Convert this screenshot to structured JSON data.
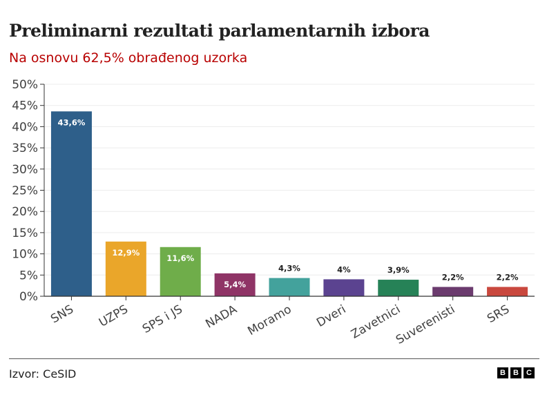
{
  "header": {
    "title": "Preliminarni rezultati parlamentarnih izbora",
    "subtitle": "Na osnovu 62,5% obrađenog uzorka"
  },
  "footer": {
    "source": "Izvor: CeSID",
    "logo": [
      "B",
      "B",
      "C"
    ]
  },
  "chart_data": {
    "type": "bar",
    "title": "Preliminarni rezultati parlamentarnih izbora",
    "subtitle": "Na osnovu 62,5% obrađenog uzorka",
    "categories": [
      "SNS",
      "UZPS",
      "SPS i JS",
      "NADA",
      "Moramo",
      "Dveri",
      "Zavetnici",
      "Suverenisti",
      "SRS"
    ],
    "values": [
      43.6,
      12.9,
      11.6,
      5.4,
      4.3,
      4,
      3.9,
      2.2,
      2.2
    ],
    "data_labels": [
      "43,6%",
      "12,9%",
      "11,6%",
      "5,4%",
      "4,3%",
      "4%",
      "3,9%",
      "2,2%",
      "2,2%"
    ],
    "colors": [
      "#2e5f8a",
      "#eaa62a",
      "#6fad4a",
      "#8f3466",
      "#43a29c",
      "#5b4390",
      "#268257",
      "#6b3b6e",
      "#c9483e"
    ],
    "yticks": [
      "0%",
      "5%",
      "10%",
      "15%",
      "20%",
      "25%",
      "30%",
      "35%",
      "40%",
      "45%",
      "50%"
    ],
    "ylim": [
      0,
      50
    ],
    "xlabel": "",
    "ylabel": "",
    "grid": true,
    "legend": "none"
  }
}
